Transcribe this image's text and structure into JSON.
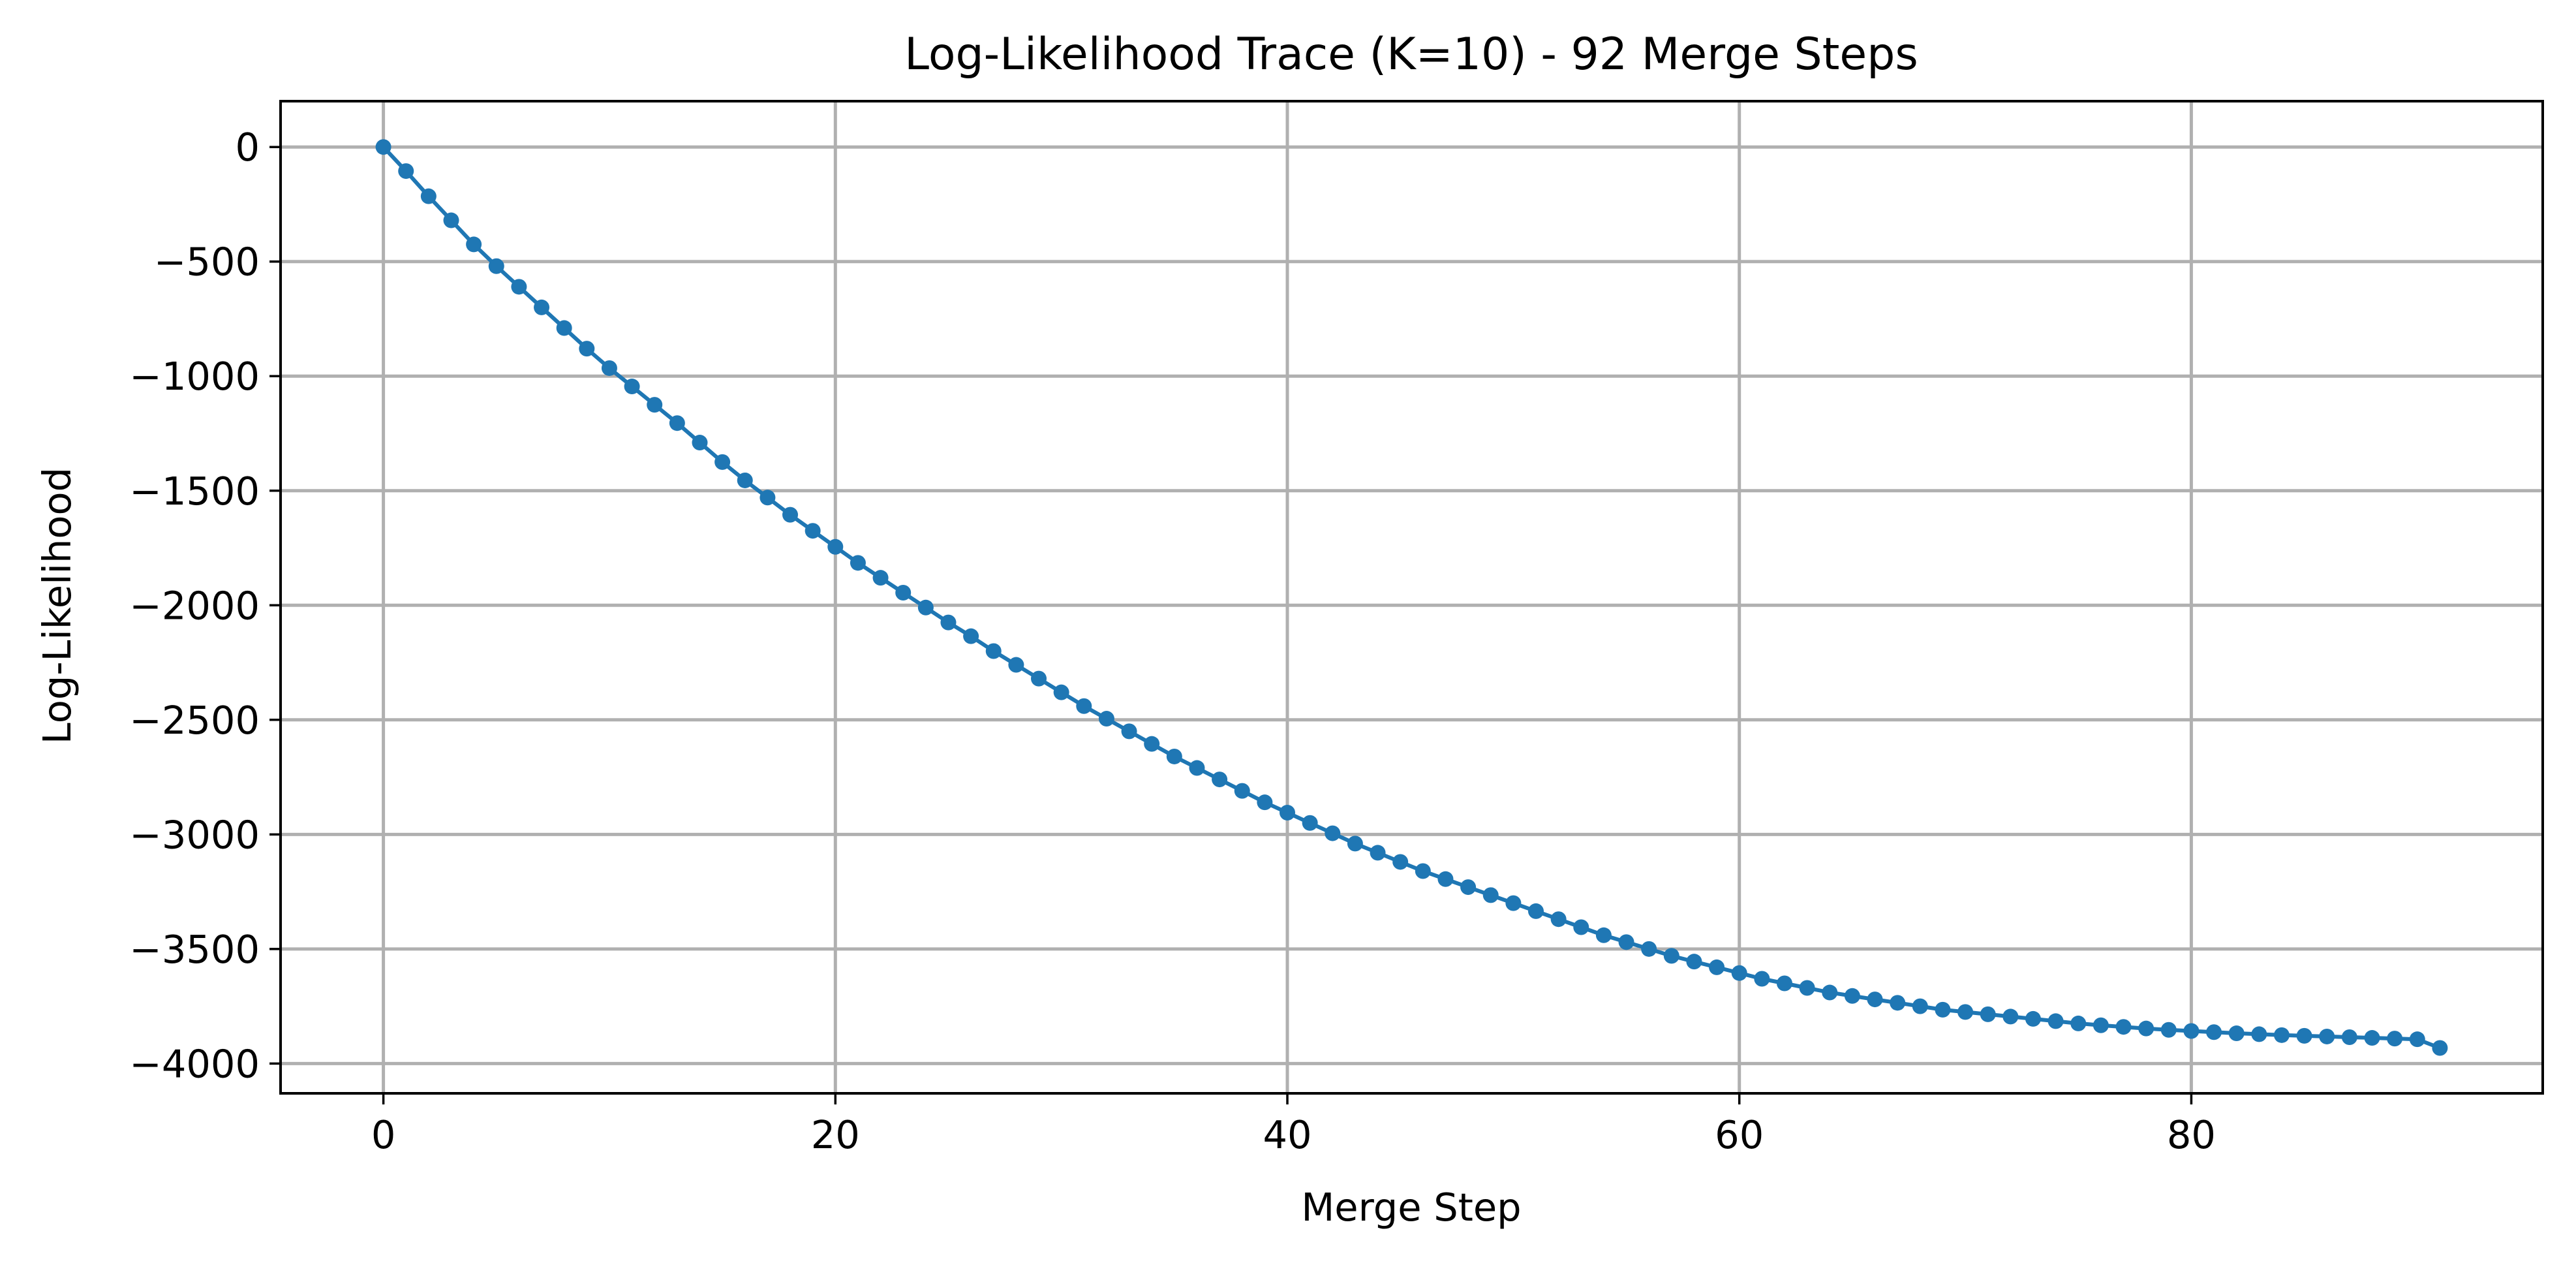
{
  "chart_data": {
    "type": "line",
    "title": "Log-Likelihood Trace (K=10) - 92 Merge Steps",
    "xlabel": "Merge Step",
    "ylabel": "Log-Likelihood",
    "xlim": [
      -4.55,
      95.55
    ],
    "ylim": [
      -4130,
      200
    ],
    "xticks": [
      0,
      20,
      40,
      60,
      80
    ],
    "xtick_labels": [
      "0",
      "20",
      "40",
      "60",
      "80"
    ],
    "yticks": [
      0,
      -500,
      -1000,
      -1500,
      -2000,
      -2500,
      -3000,
      -3500,
      -4000
    ],
    "ytick_labels": [
      "0",
      "−500",
      "−1000",
      "−1500",
      "−2000",
      "−2500",
      "−3000",
      "−3500",
      "−4000"
    ],
    "grid": true,
    "line_color": "#1f77b4",
    "marker": "circle",
    "series": [
      {
        "x": [
          0,
          1,
          2,
          3,
          4,
          5,
          6,
          7,
          8,
          9,
          10,
          11,
          12,
          13,
          14,
          15,
          16,
          17,
          18,
          19,
          20,
          21,
          22,
          23,
          24,
          25,
          26,
          27,
          28,
          29,
          30,
          31,
          32,
          33,
          34,
          35,
          36,
          37,
          38,
          39,
          40,
          41,
          42,
          43,
          44,
          45,
          46,
          47,
          48,
          49,
          50,
          51,
          52,
          53,
          54,
          55,
          56,
          57,
          58,
          59,
          60,
          61,
          62,
          63,
          64,
          65,
          66,
          67,
          68,
          69,
          70,
          71,
          72,
          73,
          74,
          75,
          76,
          77,
          78,
          79,
          80,
          81,
          82,
          83,
          84,
          85,
          86,
          87,
          88,
          89,
          90,
          91
        ],
        "values": [
          0,
          -105,
          -215,
          -320,
          -425,
          -520,
          -610,
          -700,
          -790,
          -880,
          -965,
          -1045,
          -1125,
          -1205,
          -1290,
          -1375,
          -1455,
          -1530,
          -1605,
          -1675,
          -1745,
          -1815,
          -1880,
          -1945,
          -2010,
          -2075,
          -2135,
          -2200,
          -2260,
          -2320,
          -2380,
          -2440,
          -2495,
          -2550,
          -2605,
          -2660,
          -2710,
          -2760,
          -2810,
          -2860,
          -2905,
          -2950,
          -2995,
          -3040,
          -3080,
          -3120,
          -3160,
          -3195,
          -3230,
          -3265,
          -3300,
          -3335,
          -3370,
          -3405,
          -3440,
          -3470,
          -3500,
          -3530,
          -3555,
          -3580,
          -3605,
          -3630,
          -3650,
          -3670,
          -3690,
          -3705,
          -3720,
          -3735,
          -3750,
          -3765,
          -3775,
          -3785,
          -3795,
          -3805,
          -3815,
          -3825,
          -3833,
          -3840,
          -3847,
          -3853,
          -3858,
          -3863,
          -3868,
          -3872,
          -3876,
          -3879,
          -3882,
          -3885,
          -3888,
          -3891,
          -3894,
          -3932
        ]
      }
    ]
  }
}
